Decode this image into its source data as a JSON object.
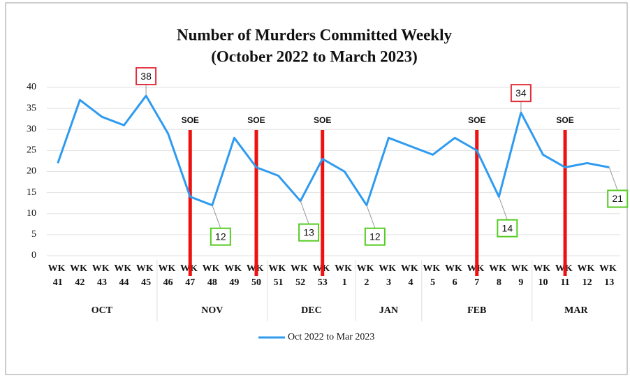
{
  "chart_data": {
    "type": "line",
    "title": [
      "Number of Murders Committed Weekly",
      "(October 2022 to March 2023)"
    ],
    "categories": [
      "WK 41",
      "WK 42",
      "WK 43",
      "WK 44",
      "WK 45",
      "WK 46",
      "WK 47",
      "WK 48",
      "WK 49",
      "WK 50",
      "WK 51",
      "WK 52",
      "WK 53",
      "WK 1",
      "WK 2",
      "WK 3",
      "WK 4",
      "WK 5",
      "WK 6",
      "WK 7",
      "WK 8",
      "WK 9",
      "WK 10",
      "WK 11",
      "WK 12",
      "WK 13"
    ],
    "series": [
      {
        "name": "Oct 2022 to Mar 2023",
        "color": "#2e9bf0",
        "values": [
          22,
          37,
          33,
          31,
          38,
          29,
          14,
          12,
          28,
          21,
          19,
          13,
          23,
          20,
          12,
          28,
          26,
          24,
          28,
          25,
          14,
          34,
          24,
          21,
          22,
          21
        ]
      }
    ],
    "ylim": [
      0,
      40
    ],
    "yticks": [
      0,
      5,
      10,
      15,
      20,
      25,
      30,
      35,
      40
    ],
    "grid": true,
    "legend": "bottom",
    "months": [
      {
        "label": "OCT",
        "from": 0,
        "to": 4
      },
      {
        "label": "NOV",
        "from": 5,
        "to": 9
      },
      {
        "label": "DEC",
        "from": 10,
        "to": 13
      },
      {
        "label": "JAN",
        "from": 14,
        "to": 16
      },
      {
        "label": "FEB",
        "from": 17,
        "to": 21
      },
      {
        "label": "MAR",
        "from": 22,
        "to": 25
      }
    ],
    "events": [
      {
        "label": "SOE",
        "category": 6,
        "color": "#ee1111"
      },
      {
        "label": "SOE",
        "category": 9,
        "color": "#ee1111"
      },
      {
        "label": "SOE",
        "category": 12,
        "color": "#ee1111"
      },
      {
        "label": "SOE",
        "category": 19,
        "color": "#ee1111"
      },
      {
        "label": "SOE",
        "category": 23,
        "color": "#ee1111"
      }
    ],
    "callouts": [
      {
        "index": 4,
        "color": "#e0303a",
        "position": "above"
      },
      {
        "index": 7,
        "color": "#55cc22",
        "position": "below"
      },
      {
        "index": 11,
        "color": "#55cc22",
        "position": "below"
      },
      {
        "index": 14,
        "color": "#55cc22",
        "position": "below"
      },
      {
        "index": 20,
        "color": "#55cc22",
        "position": "below"
      },
      {
        "index": 21,
        "color": "#e0303a",
        "position": "above"
      },
      {
        "index": 25,
        "color": "#55cc22",
        "position": "below"
      }
    ]
  }
}
